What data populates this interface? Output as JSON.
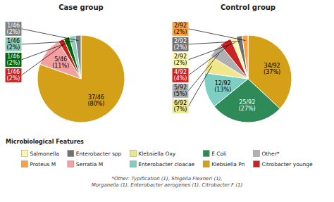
{
  "chart_data": [
    {
      "type": "pie",
      "title": "Case group",
      "values": [
        37,
        5,
        1,
        1,
        1,
        1
      ],
      "value_labels": [
        "37/46\n(80%)",
        "5/46\n(11%)",
        "1/46\n(2%)",
        "1/46\n(2%)",
        "1/46\n(2%)",
        "1/46\n(2%)"
      ],
      "colors": [
        "#D4A017",
        "#F4A0A0",
        "#CC2222",
        "#006400",
        "#88CCBB",
        "#808080"
      ],
      "data_labels": true
    },
    {
      "type": "pie",
      "title": "Control group",
      "values": [
        34,
        25,
        12,
        6,
        5,
        4,
        2,
        2,
        2
      ],
      "value_labels": [
        "34/92\n(37%)",
        "25/92\n(27%)",
        "12/92\n(13%)",
        "6/92\n(7%)",
        "5/92\n(5%)",
        "4/92\n(4%)",
        "2/92\n(2%)",
        "2/92\n(2%)",
        "2/92\n(2%)"
      ],
      "colors": [
        "#D4A017",
        "#2E8B57",
        "#7ECEC4",
        "#F0E68C",
        "#B0B0B0",
        "#CC2222",
        "#FFFAAA",
        "#707070",
        "#FFA040"
      ],
      "data_labels": true
    }
  ],
  "legend_title": "Microbiological Features",
  "legend_rows": [
    [
      {
        "name": "Salmonella",
        "color": "#FFFAAA"
      },
      {
        "name": "Enterobacter spp",
        "color": "#707070"
      },
      {
        "name": "Klebsiella Oxy",
        "color": "#F0E68C"
      },
      {
        "name": "E Coli",
        "color": "#2E8B57"
      },
      {
        "name": "Other*",
        "color": "#B0B0B0"
      }
    ],
    [
      {
        "name": "Proteus M",
        "color": "#FFA040"
      },
      {
        "name": "Serratia M",
        "color": "#F4A0A0"
      },
      {
        "name": "Enterobacter cloacae",
        "color": "#7ECEC4"
      },
      {
        "name": "Klebsiella Pn",
        "color": "#D4A017"
      },
      {
        "name": "Citrobacter younge",
        "color": "#CC2222"
      }
    ]
  ],
  "footnote": "*Other: Typification (1), Shigella Flexneri (1),\nMorganella (1), Enterobacter aerogenes (1), Citrobacter F (1)"
}
